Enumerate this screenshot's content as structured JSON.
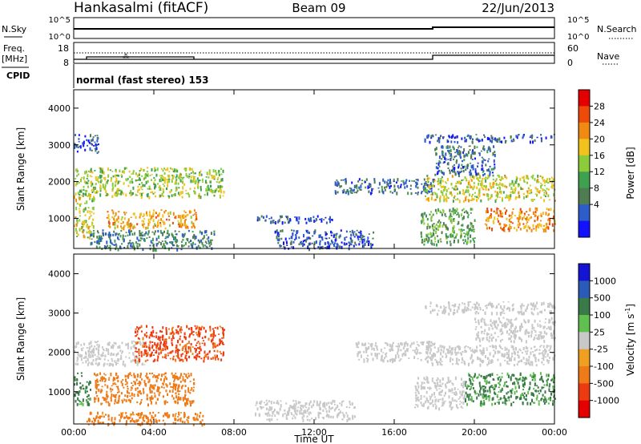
{
  "header": {
    "station": "Hankasalmi (fitACF)",
    "beam": "Beam 09",
    "date": "22/Jun/2013"
  },
  "top_panel": {
    "left_label": "N.Sky",
    "right_label": "N.Search",
    "left_ticks": [
      "10^5",
      "10^0"
    ],
    "right_ticks": [
      "10^5",
      "10^0"
    ]
  },
  "freq_panel": {
    "left_label_1": "Freq.",
    "left_label_2": "[MHz]",
    "left_ticks": [
      "18",
      "8"
    ],
    "right_label": "Nave",
    "right_ticks": [
      "60",
      "0"
    ]
  },
  "cpid": {
    "label": "CPID",
    "text": "normal (fast stereo) 153"
  },
  "colors": {
    "power_scale": [
      "#1212ff",
      "#2e5cc8",
      "#4f7c50",
      "#3fa050",
      "#8ccc3a",
      "#f2c21c",
      "#f08a10",
      "#ee4a0a",
      "#e40000"
    ],
    "velocity_scale": [
      "#1414d4",
      "#2b5ab8",
      "#3a7a48",
      "#5fc050",
      "#c8c8c8",
      "#f0a020",
      "#ee7a18",
      "#ee3a10",
      "#e40000"
    ]
  },
  "chart_data": [
    {
      "type": "heatmap",
      "name": "power",
      "ylabel": "Slant Range [km]",
      "xlabel": "",
      "ylim": [
        180,
        4500
      ],
      "xlim": [
        0,
        24
      ],
      "y_ticks": [
        "4000",
        "3000",
        "2000",
        "1000"
      ],
      "x_ticks": [
        "00:00",
        "04:00",
        "08:00",
        "12:00",
        "16:00",
        "20:00",
        "00:00"
      ],
      "colorbar_label": "Power [dB]",
      "colorbar_ticks": [
        "28",
        "24",
        "20",
        "16",
        "12",
        "8",
        "4"
      ],
      "blobs": [
        {
          "t0": 0.0,
          "t1": 7.5,
          "r0": 1600,
          "r1": 2400,
          "value": 18
        },
        {
          "t0": 0.0,
          "t1": 1.0,
          "r0": 500,
          "r1": 1700,
          "value": 20
        },
        {
          "t0": 1.6,
          "t1": 6.2,
          "r0": 750,
          "r1": 1250,
          "value": 24
        },
        {
          "t0": 0.8,
          "t1": 7.0,
          "r0": 180,
          "r1": 700,
          "value": 10
        },
        {
          "t0": 0.0,
          "t1": 1.2,
          "r0": 2800,
          "r1": 3300,
          "value": 6
        },
        {
          "t0": 9.0,
          "t1": 13.0,
          "r0": 900,
          "r1": 1100,
          "value": 6
        },
        {
          "t0": 10.0,
          "t1": 15.0,
          "r0": 200,
          "r1": 700,
          "value": 6
        },
        {
          "t0": 13.0,
          "t1": 18.0,
          "r0": 1700,
          "r1": 2100,
          "value": 8
        },
        {
          "t0": 17.5,
          "t1": 24.0,
          "r0": 1500,
          "r1": 2200,
          "value": 20
        },
        {
          "t0": 20.5,
          "t1": 24.0,
          "r0": 700,
          "r1": 1300,
          "value": 26
        },
        {
          "t0": 18.0,
          "t1": 21.0,
          "r0": 2200,
          "r1": 3000,
          "value": 8
        },
        {
          "t0": 17.3,
          "t1": 20.0,
          "r0": 300,
          "r1": 1300,
          "value": 14
        },
        {
          "t0": 17.5,
          "t1": 24.0,
          "r0": 3100,
          "r1": 3300,
          "value": 6
        }
      ]
    },
    {
      "type": "heatmap",
      "name": "velocity",
      "ylabel": "Slant Range [km]",
      "xlabel": "Time UT",
      "ylim": [
        180,
        4500
      ],
      "xlim": [
        0,
        24
      ],
      "y_ticks": [
        "4000",
        "3000",
        "2000",
        "1000"
      ],
      "x_ticks": [
        "00:00",
        "04:00",
        "08:00",
        "12:00",
        "16:00",
        "20:00",
        "00:00"
      ],
      "colorbar_label": "Velocity [m s",
      "colorbar_label_sup": "-1",
      "colorbar_label_end": "]",
      "colorbar_ticks": [
        "1000",
        "500",
        "100",
        "25",
        "-25",
        "-100",
        "-500",
        "-1000"
      ],
      "blobs": [
        {
          "t0": 0.0,
          "t1": 3.5,
          "r0": 1700,
          "r1": 2300,
          "value": 0
        },
        {
          "t0": 3.0,
          "t1": 7.5,
          "r0": 1800,
          "r1": 2700,
          "value": -600
        },
        {
          "t0": 1.0,
          "t1": 6.0,
          "r0": 700,
          "r1": 1500,
          "value": -200
        },
        {
          "t0": 0.0,
          "t1": 0.8,
          "r0": 700,
          "r1": 1500,
          "value": 150
        },
        {
          "t0": 0.5,
          "t1": 6.5,
          "r0": 180,
          "r1": 500,
          "value": -150
        },
        {
          "t0": 9.0,
          "t1": 14.0,
          "r0": 300,
          "r1": 800,
          "value": 0
        },
        {
          "t0": 14.0,
          "t1": 18.0,
          "r0": 1800,
          "r1": 2300,
          "value": 0
        },
        {
          "t0": 17.5,
          "t1": 24.0,
          "r0": 1700,
          "r1": 2200,
          "value": 0
        },
        {
          "t0": 19.5,
          "t1": 24.0,
          "r0": 700,
          "r1": 1500,
          "value": 120
        },
        {
          "t0": 17.0,
          "t1": 19.5,
          "r0": 600,
          "r1": 1400,
          "value": 0
        },
        {
          "t0": 20.0,
          "t1": 24.0,
          "r0": 2300,
          "r1": 2900,
          "value": 0
        },
        {
          "t0": 17.5,
          "t1": 24.0,
          "r0": 3000,
          "r1": 3300,
          "value": 0
        }
      ]
    }
  ]
}
